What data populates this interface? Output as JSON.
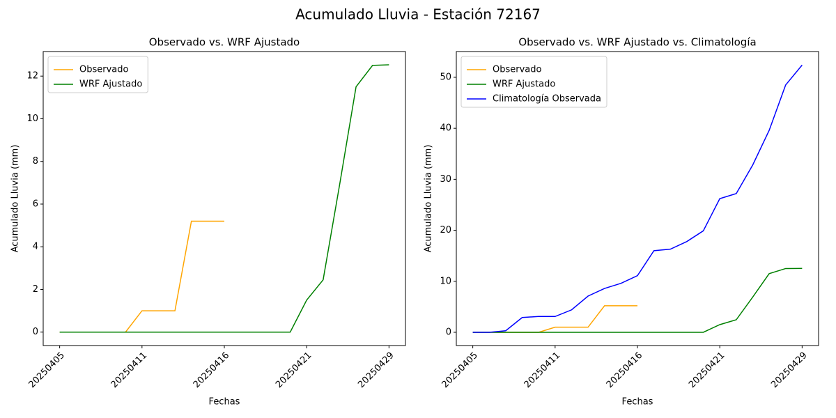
{
  "title": "Acumulado Lluvia - Estación 72167",
  "chart_data": [
    {
      "type": "line",
      "title": "Observado vs. WRF Ajustado",
      "xlabel": "Fechas",
      "ylabel": "Acumulado Lluvia (mm)",
      "categories": [
        "20250405",
        null,
        null,
        null,
        null,
        "20250411",
        null,
        null,
        null,
        null,
        "20250416",
        null,
        null,
        null,
        null,
        "20250421",
        null,
        null,
        null,
        null,
        "20250429"
      ],
      "series": [
        {
          "name": "Observado",
          "color": "orange",
          "values": [
            0,
            0,
            0,
            0,
            0,
            1,
            1,
            1,
            5.2,
            5.2,
            5.2,
            null,
            null,
            null,
            null,
            null,
            null,
            null,
            null,
            null,
            null
          ]
        },
        {
          "name": "WRF Ajustado",
          "color": "green",
          "values": [
            0,
            0,
            0,
            0,
            0,
            0,
            0,
            0,
            0,
            0,
            0,
            0,
            0,
            0,
            0,
            1.5,
            2.45,
            6.9,
            11.5,
            12.5,
            12.53
          ]
        }
      ],
      "ylim": [
        -0.63,
        13.15
      ],
      "yticks": [
        0,
        2,
        4,
        6,
        8,
        10,
        12
      ],
      "legend": "upper left"
    },
    {
      "type": "line",
      "title": "Observado vs. WRF Ajustado vs. Climatología",
      "xlabel": "Fechas",
      "ylabel": "Acumulado Lluvia (mm)",
      "categories": [
        "20250405",
        null,
        null,
        null,
        null,
        "20250411",
        null,
        null,
        null,
        null,
        "20250416",
        null,
        null,
        null,
        null,
        "20250421",
        null,
        null,
        null,
        null,
        "20250429"
      ],
      "series": [
        {
          "name": "Observado",
          "color": "orange",
          "values": [
            0,
            0,
            0,
            0,
            0,
            1,
            1,
            1,
            5.2,
            5.2,
            5.2,
            null,
            null,
            null,
            null,
            null,
            null,
            null,
            null,
            null,
            null
          ]
        },
        {
          "name": "WRF Ajustado",
          "color": "green",
          "values": [
            0,
            0,
            0,
            0,
            0,
            0,
            0,
            0,
            0,
            0,
            0,
            0,
            0,
            0,
            0,
            1.5,
            2.45,
            6.9,
            11.5,
            12.5,
            12.53
          ]
        },
        {
          "name": "Climatología Observada",
          "color": "blue",
          "values": [
            0,
            0,
            0.3,
            2.9,
            3.1,
            3.1,
            4.4,
            7.1,
            8.6,
            9.6,
            11.1,
            16.0,
            16.3,
            17.8,
            19.9,
            26.2,
            27.2,
            32.8,
            39.6,
            48.5,
            52.4
          ]
        }
      ],
      "ylim": [
        -2.6,
        55.05
      ],
      "yticks": [
        0,
        10,
        20,
        30,
        40,
        50
      ],
      "legend": "upper left"
    }
  ]
}
